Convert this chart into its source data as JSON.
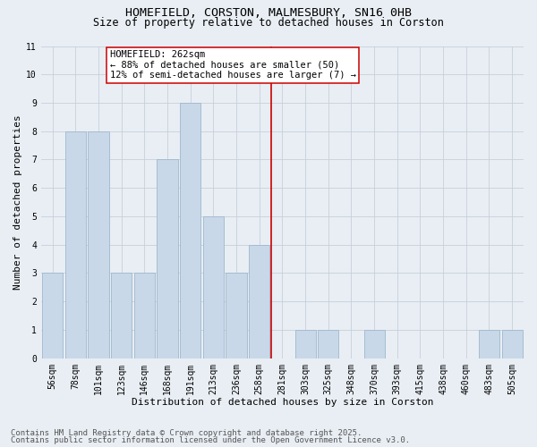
{
  "title1": "HOMEFIELD, CORSTON, MALMESBURY, SN16 0HB",
  "title2": "Size of property relative to detached houses in Corston",
  "xlabel": "Distribution of detached houses by size in Corston",
  "ylabel": "Number of detached properties",
  "categories": [
    "56sqm",
    "78sqm",
    "101sqm",
    "123sqm",
    "146sqm",
    "168sqm",
    "191sqm",
    "213sqm",
    "236sqm",
    "258sqm",
    "281sqm",
    "303sqm",
    "325sqm",
    "348sqm",
    "370sqm",
    "393sqm",
    "415sqm",
    "438sqm",
    "460sqm",
    "483sqm",
    "505sqm"
  ],
  "values": [
    3,
    8,
    8,
    3,
    3,
    7,
    9,
    5,
    3,
    4,
    0,
    1,
    1,
    0,
    1,
    0,
    0,
    0,
    0,
    1,
    1
  ],
  "bar_color": "#c8d8e8",
  "bar_edgecolor": "#a0b8cc",
  "vline_index": 9.5,
  "vline_color": "#cc0000",
  "annotation_text": "HOMEFIELD: 262sqm\n← 88% of detached houses are smaller (50)\n12% of semi-detached houses are larger (7) →",
  "annotation_box_color": "#ffffff",
  "annotation_box_edgecolor": "#cc0000",
  "ylim": [
    0,
    11
  ],
  "yticks": [
    0,
    1,
    2,
    3,
    4,
    5,
    6,
    7,
    8,
    9,
    10,
    11
  ],
  "grid_color": "#c8cfd8",
  "background_color": "#e8eef4",
  "footer1": "Contains HM Land Registry data © Crown copyright and database right 2025.",
  "footer2": "Contains public sector information licensed under the Open Government Licence v3.0.",
  "title_fontsize": 9.5,
  "subtitle_fontsize": 8.5,
  "axis_label_fontsize": 8,
  "tick_fontsize": 7,
  "annotation_fontsize": 7.5,
  "footer_fontsize": 6.5
}
